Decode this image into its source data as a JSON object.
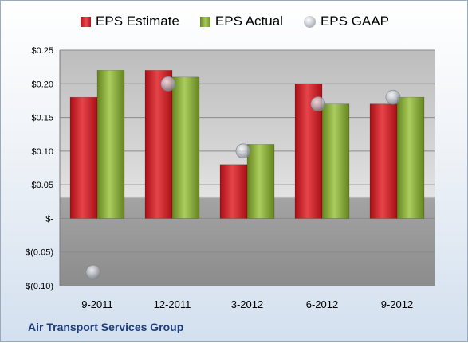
{
  "chart_data": {
    "type": "bar",
    "categories": [
      "9-2011",
      "12-2011",
      "3-2012",
      "6-2012",
      "9-2012"
    ],
    "series": [
      {
        "name": "EPS Estimate",
        "type": "bar",
        "color": "#c8262c",
        "values": [
          0.18,
          0.22,
          0.08,
          0.2,
          0.17
        ]
      },
      {
        "name": "EPS Actual",
        "type": "bar",
        "color": "#8fb43c",
        "values": [
          0.22,
          0.21,
          0.11,
          0.17,
          0.18
        ]
      },
      {
        "name": "EPS GAAP",
        "type": "scatter",
        "color": "#b9bec6",
        "values": [
          -0.08,
          0.2,
          0.1,
          0.17,
          0.18
        ]
      }
    ],
    "ylim": [
      -0.1,
      0.25
    ],
    "yticks": [
      {
        "value": 0.25,
        "label": "$0.25"
      },
      {
        "value": 0.2,
        "label": "$0.20"
      },
      {
        "value": 0.15,
        "label": "$0.15"
      },
      {
        "value": 0.1,
        "label": "$0.10"
      },
      {
        "value": 0.05,
        "label": "$0.05"
      },
      {
        "value": 0.0,
        "label": "$-"
      },
      {
        "value": -0.05,
        "label": "$(0.05)"
      },
      {
        "value": -0.1,
        "label": "$(0.10)"
      }
    ],
    "grid": true,
    "legend_position": "top"
  },
  "footer": {
    "company": "Air Transport Services Group"
  }
}
